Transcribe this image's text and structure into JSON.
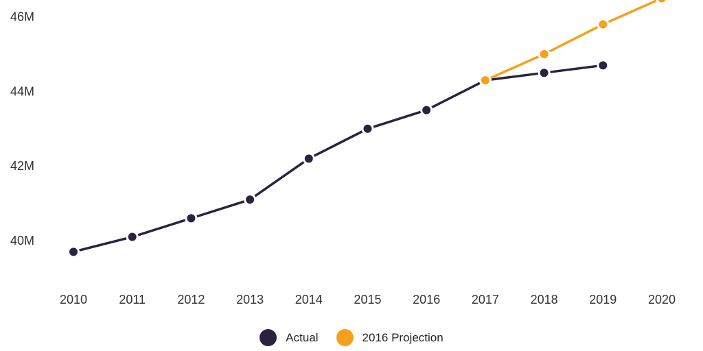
{
  "colors": {
    "actual": "#2B2240",
    "projection": "#F5A11B",
    "axis_text": "#333333",
    "background": "#FFFFFF",
    "marker_halo": "#FFFFFF"
  },
  "chart_data": {
    "type": "line",
    "title": "",
    "xlabel": "",
    "ylabel": "",
    "grid": false,
    "legend_position": "bottom",
    "xlim": [
      2010,
      2020
    ],
    "ylim": [
      39.4,
      46.6
    ],
    "xticks": [
      "2010",
      "2011",
      "2012",
      "2013",
      "2014",
      "2015",
      "2016",
      "2017",
      "2018",
      "2019",
      "2020"
    ],
    "yticks": [
      {
        "value": 40,
        "label": "40M"
      },
      {
        "value": 42,
        "label": "42M"
      },
      {
        "value": 44,
        "label": "44M"
      },
      {
        "value": 46,
        "label": "46M"
      }
    ],
    "series": [
      {
        "name": "Actual",
        "color_key": "actual",
        "x": [
          2010,
          2011,
          2012,
          2013,
          2014,
          2015,
          2016,
          2017,
          2018,
          2019
        ],
        "values": [
          39.7,
          40.1,
          40.6,
          41.1,
          42.2,
          43.0,
          43.5,
          44.3,
          44.5,
          44.7
        ]
      },
      {
        "name": "2016 Projection",
        "color_key": "projection",
        "x": [
          2017,
          2018,
          2019,
          2020
        ],
        "values": [
          44.3,
          45.0,
          45.8,
          46.5
        ]
      }
    ]
  }
}
